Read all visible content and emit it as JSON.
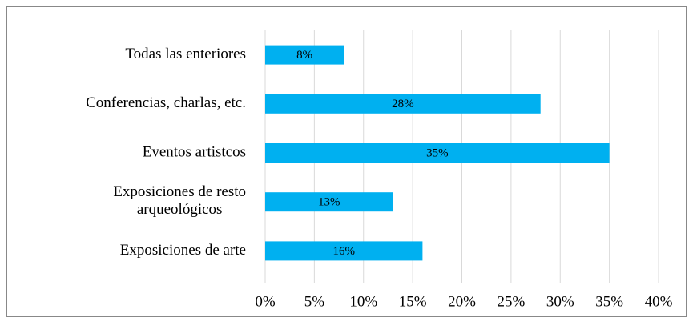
{
  "chart_data": {
    "type": "hbar",
    "categories": [
      "Todas las enteriores",
      "Conferencias, charlas, etc.",
      "Eventos artistcos",
      "Exposiciones de resto arqueológicos",
      "Exposiciones de arte"
    ],
    "values": [
      8,
      28,
      35,
      13,
      16
    ],
    "value_labels": [
      "8%",
      "28%",
      "35%",
      "13%",
      "16%"
    ],
    "color": "#00b0f0",
    "xlim": [
      0,
      40
    ],
    "xticks": [
      {
        "value": 0,
        "label": "0%"
      },
      {
        "value": 5,
        "label": "5%"
      },
      {
        "value": 10,
        "label": "10%"
      },
      {
        "value": 15,
        "label": "15%"
      },
      {
        "value": 20,
        "label": "20%"
      },
      {
        "value": 25,
        "label": "25%"
      },
      {
        "value": 30,
        "label": "30%"
      },
      {
        "value": 35,
        "label": "35%"
      },
      {
        "value": 40,
        "label": "40%"
      }
    ],
    "grid": true
  }
}
